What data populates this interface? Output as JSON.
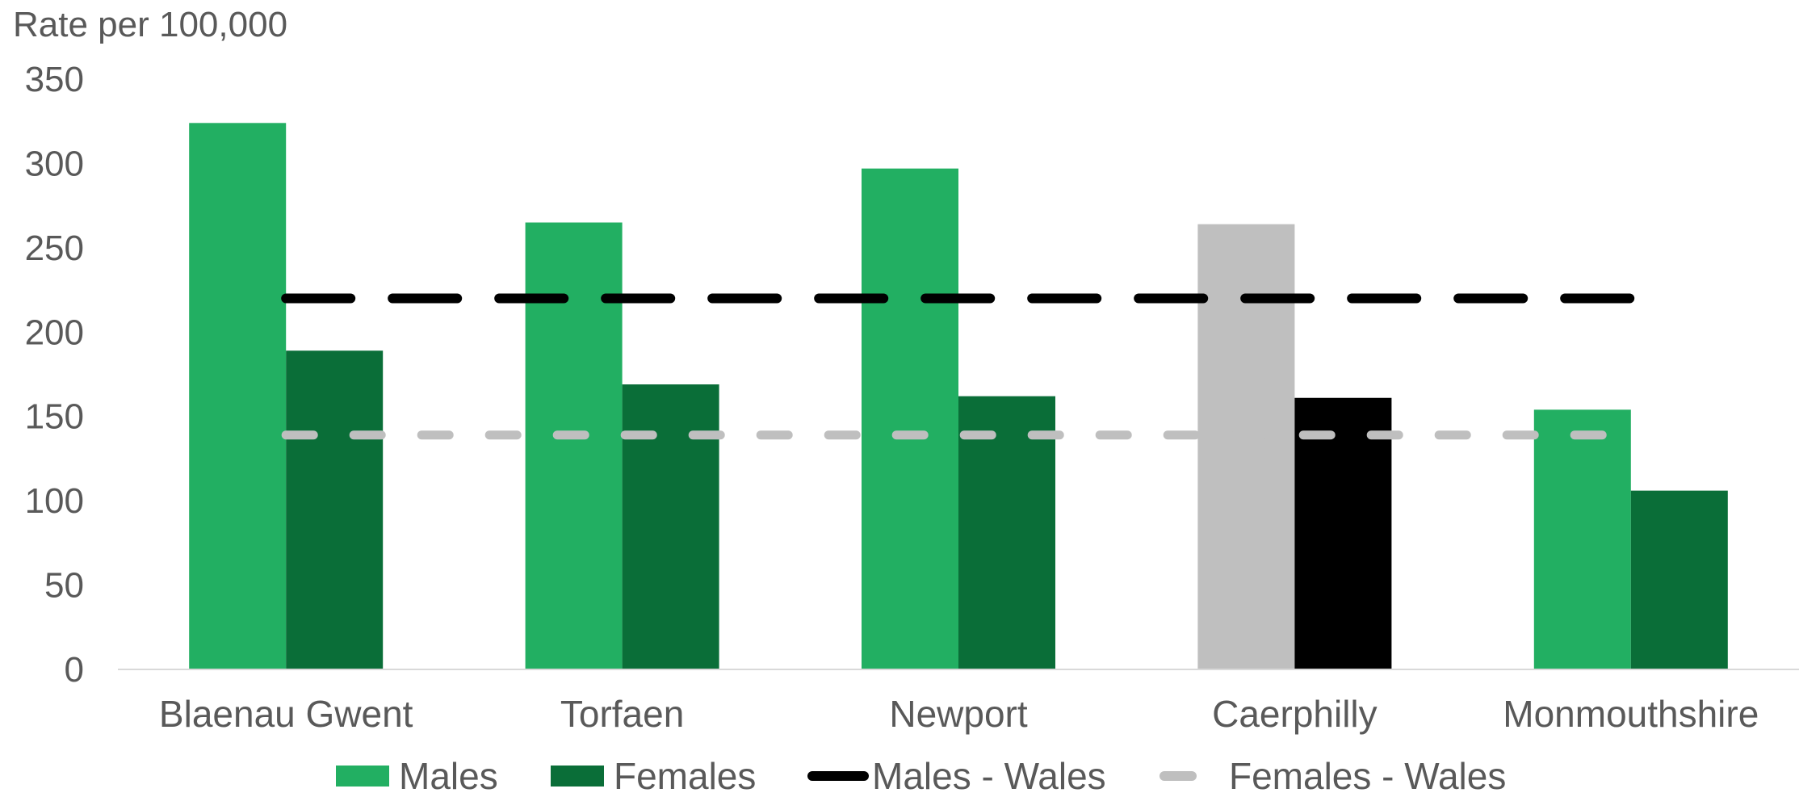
{
  "chart_data": {
    "type": "bar",
    "title": "",
    "ylabel": "Rate per 100,000",
    "xlabel": "",
    "categories": [
      "Blaenau Gwent",
      "Torfaen",
      "Newport",
      "Caerphilly",
      "Monmouthshire"
    ],
    "series": [
      {
        "name": "Males",
        "values": [
          324,
          265,
          297,
          264,
          154
        ],
        "color": "#22AF62"
      },
      {
        "name": "Females",
        "values": [
          189,
          169,
          162,
          161,
          106
        ],
        "color": "#0A6E38"
      }
    ],
    "highlight": {
      "category": "Caerphilly",
      "colors": {
        "Males": "#BFBFBF",
        "Females": "#000000"
      }
    },
    "reference_lines": [
      {
        "name": "Males - Wales",
        "value": 220,
        "color": "#000000",
        "style": "dashed"
      },
      {
        "name": "Females - Wales",
        "value": 139,
        "color": "#BFBFBF",
        "style": "dashed"
      }
    ],
    "ylim": [
      0,
      350
    ],
    "yticks": [
      0,
      50,
      100,
      150,
      200,
      250,
      300,
      350
    ],
    "grid": false,
    "legend_position": "bottom"
  }
}
